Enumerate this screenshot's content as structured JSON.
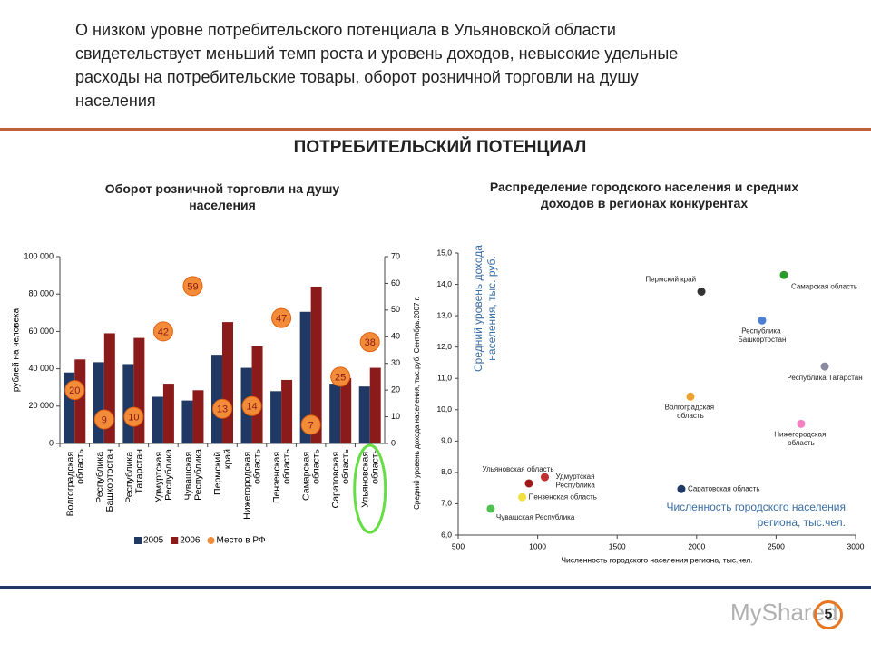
{
  "header": {
    "lines": [
      "О низком уровне потребительского потенциала в Ульяновской области",
      "свидетельствует меньший темп роста и уровень доходов, невысокие удельные",
      "расходы на потребительские товары, оборот розничной торговли на душу",
      "населения"
    ]
  },
  "section_title": "ПОТРЕБИТЕЛЬСКИЙ ПОТЕНЦИАЛ",
  "chart_data": [
    {
      "type": "bar",
      "title": "Оборот розничной торговли на душу населения",
      "ylabel": "рублей на человека",
      "categories": [
        "Волгоградская область",
        "Республика Башкортостан",
        "Республика Татарстан",
        "Удмуртская Республика",
        "Чувашская Республика",
        "Пермский край",
        "Нижегородская область",
        "Пензенская область",
        "Самарская область",
        "Саратовская область",
        "Ульяновская область"
      ],
      "series": [
        {
          "name": "2005",
          "color": "#1f3864",
          "values": [
            38000,
            43500,
            42500,
            25000,
            23000,
            47500,
            40500,
            28000,
            70500,
            32000,
            30500
          ]
        },
        {
          "name": "2006",
          "color": "#8b1a1a",
          "values": [
            45000,
            59000,
            56500,
            32000,
            28500,
            65000,
            52000,
            34000,
            84000,
            35000,
            40500
          ]
        },
        {
          "name": "Место в РФ",
          "color": "#f28c38",
          "axis": "y2",
          "values": [
            20,
            9,
            10,
            42,
            59,
            13,
            14,
            47,
            7,
            25,
            38
          ]
        }
      ],
      "ylim": [
        0,
        100000
      ],
      "yticks": [
        0,
        {
          "value": 20000,
          "label": "20 000"
        },
        {
          "value": 40000,
          "label": "40 000"
        },
        {
          "value": 60000,
          "label": "60 000"
        },
        {
          "value": 80000,
          "label": "80 000"
        },
        {
          "value": 100000,
          "label": "100 000"
        }
      ],
      "y2lim": [
        0,
        70
      ],
      "y2ticks": [
        0,
        10,
        20,
        30,
        40,
        50,
        60,
        70
      ],
      "legend": "bottom"
    },
    {
      "type": "scatter",
      "title": "Распределение городского населения и средних доходов в регионах конкурентах",
      "xlabel": "Численность городского населения региона, тыс.чел.",
      "ylabel": "Средний уровень дохода населения, тыс.руб. Сентябрь.2007 г.",
      "annotations": [
        "Средний уровень дохода населения, тыс. руб.",
        "Численность городского населения региона, тыс.чел."
      ],
      "points": [
        {
          "label": "Пермский край",
          "x": 2030,
          "y": 13.77,
          "color": "#333333"
        },
        {
          "label": "Самарская область",
          "x": 2549,
          "y": 14.3,
          "color": "#2a9a2a"
        },
        {
          "label": "Республика Башкортостан",
          "x": 2412,
          "y": 12.85,
          "color": "#4a7fd4"
        },
        {
          "label": "Республика Татарстан",
          "x": 2806,
          "y": 11.38,
          "color": "#8a8aa0"
        },
        {
          "label": "Волгоградская область",
          "x": 1961,
          "y": 10.42,
          "color": "#f0a030"
        },
        {
          "label": "Нижегородская область",
          "x": 2657,
          "y": 9.55,
          "color": "#f080c0"
        },
        {
          "label": "Саратовская область",
          "x": 1904,
          "y": 7.47,
          "color": "#1f3864"
        },
        {
          "label": "Ульяновская область",
          "x": 945,
          "y": 7.65,
          "color": "#a01818"
        },
        {
          "label": "Удмуртская Республика",
          "x": 1045,
          "y": 7.85,
          "color": "#c03030"
        },
        {
          "label": "Пензенская область",
          "x": 903,
          "y": 7.21,
          "color": "#f0e040"
        },
        {
          "label": "Чувашская Республика",
          "x": 705,
          "y": 6.84,
          "color": "#50c050"
        }
      ],
      "xlim": [
        500,
        3000
      ],
      "xticks": [
        500,
        1000,
        1500,
        2000,
        2500,
        3000
      ],
      "ylim": [
        6,
        15
      ],
      "yticks": [
        {
          "value": 6,
          "label": "6,0"
        },
        {
          "value": 7,
          "label": "7,0"
        },
        {
          "value": 8,
          "label": "8,0"
        },
        {
          "value": 9,
          "label": "9,0"
        },
        {
          "value": 10,
          "label": "10,0"
        },
        {
          "value": 11,
          "label": "11,0"
        },
        {
          "value": 12,
          "label": "12,0"
        },
        {
          "value": 13,
          "label": "13,0"
        },
        {
          "value": 14,
          "label": "14,0"
        },
        {
          "value": 15,
          "label": "15,0"
        }
      ]
    }
  ],
  "footer": {
    "watermark": "MyShared",
    "page_number": "5"
  }
}
